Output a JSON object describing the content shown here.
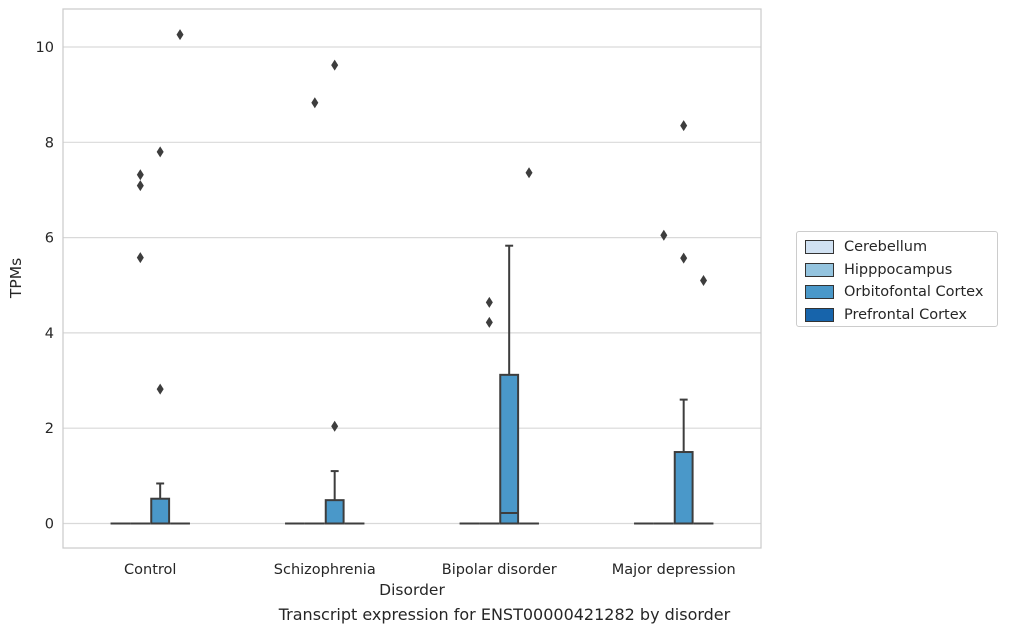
{
  "caption": "Transcript expression for ENST00000421282 by disorder",
  "chart_data": {
    "type": "box",
    "xlabel": "Disorder",
    "ylabel": "TPMs",
    "ylim": [
      -0.5,
      10.8
    ],
    "yticks": [
      0,
      2,
      4,
      6,
      8,
      10
    ],
    "grid": "horizontal",
    "legend_position": "right",
    "categories": [
      "Control",
      "Schizophrenia",
      "Bipolar disorder",
      "Major depression"
    ],
    "series": [
      {
        "name": "Cerebellum",
        "color": "#d0e1f2",
        "boxes": [
          {
            "min": 0,
            "q1": 0,
            "median": 0,
            "q3": 0,
            "max": 0,
            "outliers": []
          },
          {
            "min": 0,
            "q1": 0,
            "median": 0,
            "q3": 0,
            "max": 0,
            "outliers": []
          },
          {
            "min": 0,
            "q1": 0,
            "median": 0,
            "q3": 0,
            "max": 0,
            "outliers": []
          },
          {
            "min": 0,
            "q1": 0,
            "median": 0,
            "q3": 0,
            "max": 0,
            "outliers": []
          }
        ]
      },
      {
        "name": "Hipppocampus",
        "color": "#94c4df",
        "boxes": [
          {
            "min": 0,
            "q1": 0,
            "median": 0,
            "q3": 0,
            "max": 0,
            "outliers": [
              7.32,
              7.09,
              5.58
            ]
          },
          {
            "min": 0,
            "q1": 0,
            "median": 0,
            "q3": 0,
            "max": 0,
            "outliers": [
              8.83
            ]
          },
          {
            "min": 0,
            "q1": 0,
            "median": 0,
            "q3": 0,
            "max": 0,
            "outliers": [
              4.64,
              4.22
            ]
          },
          {
            "min": 0,
            "q1": 0,
            "median": 0,
            "q3": 0,
            "max": 0,
            "outliers": [
              6.05
            ]
          }
        ]
      },
      {
        "name": "Orbitofontal Cortex",
        "color": "#4a98c9",
        "boxes": [
          {
            "min": 0,
            "q1": 0,
            "median": 0,
            "q3": 0.52,
            "max": 0.84,
            "outliers": [
              7.8,
              2.82
            ]
          },
          {
            "min": 0,
            "q1": 0,
            "median": 0,
            "q3": 0.49,
            "max": 1.1,
            "outliers": [
              9.62,
              2.04
            ]
          },
          {
            "min": 0,
            "q1": 0,
            "median": 0.22,
            "q3": 3.12,
            "max": 5.83,
            "outliers": []
          },
          {
            "min": 0,
            "q1": 0,
            "median": 0,
            "q3": 1.5,
            "max": 2.6,
            "outliers": [
              8.35,
              5.57
            ]
          }
        ]
      },
      {
        "name": "Prefrontal Cortex",
        "color": "#1764ab",
        "boxes": [
          {
            "min": 0,
            "q1": 0,
            "median": 0,
            "q3": 0,
            "max": 0,
            "outliers": [
              10.26
            ]
          },
          {
            "min": 0,
            "q1": 0,
            "median": 0,
            "q3": 0,
            "max": 0,
            "outliers": []
          },
          {
            "min": 0,
            "q1": 0,
            "median": 0,
            "q3": 0,
            "max": 0,
            "outliers": [
              7.36
            ]
          },
          {
            "min": 0,
            "q1": 0,
            "median": 0,
            "q3": 0,
            "max": 0,
            "outliers": [
              5.1
            ]
          }
        ]
      }
    ]
  }
}
